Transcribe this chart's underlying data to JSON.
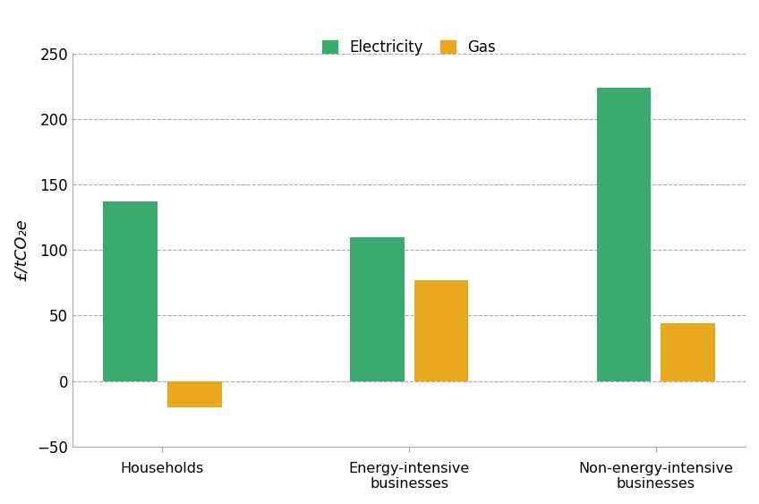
{
  "categories": [
    "Households",
    "Energy-intensive\nbusinesses",
    "Non-energy-intensive\nbusinesses"
  ],
  "electricity_values": [
    137,
    110,
    224
  ],
  "gas_values": [
    -20,
    77,
    44
  ],
  "electricity_color": "#3aaa6e",
  "gas_color": "#e8a820",
  "ylabel": "£/tCO₂e",
  "ylim": [
    -50,
    250
  ],
  "yticks": [
    -50,
    0,
    50,
    100,
    150,
    200,
    250
  ],
  "legend_electricity": "Electricity",
  "legend_gas": "Gas",
  "bar_width": 0.22,
  "background_color": "#ffffff",
  "grid_color": "#aaaaaa",
  "spine_color": "#aaaaaa"
}
